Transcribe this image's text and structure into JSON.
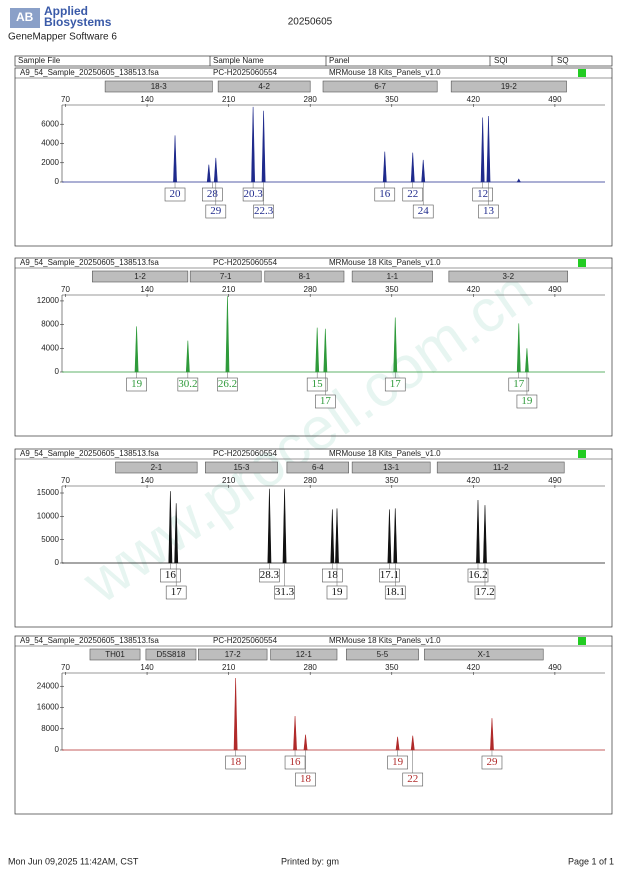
{
  "header": {
    "logo_line1": "Applied",
    "logo_line2": "Biosystems",
    "software": "GeneMapper Software 6",
    "date": "20250605"
  },
  "columns": [
    "Sample File",
    "Sample Name",
    "Panel",
    "SQI",
    "SQ"
  ],
  "watermark": "www.procell.com.cn",
  "footer": {
    "printed_on": "Mon Jun 09,2025 11:42AM, CST",
    "printed_by": "Printed by: gm",
    "page": "Page 1 of 1"
  },
  "chart_data": [
    {
      "type": "peak",
      "color": "#1f2a8c",
      "sample_file": "A9_54_Sample_20250605_138513.fsa",
      "sample_name": "PC-H2025060554",
      "panel": "MRMouse 18 Kits_Panels_v1.0",
      "markers": [
        "18-3",
        "4-2",
        "6-7",
        "19-2"
      ],
      "marker_ranges": [
        [
          104,
          196
        ],
        [
          201,
          280
        ],
        [
          291,
          389
        ],
        [
          401,
          500
        ]
      ],
      "xlim": [
        67,
        533
      ],
      "xticks": [
        70,
        140,
        210,
        280,
        350,
        420,
        490
      ],
      "ylim": [
        0,
        8000
      ],
      "yticks": [
        0,
        2000,
        4000,
        6000
      ],
      "x": [
        164,
        193,
        199,
        231,
        240,
        344,
        368,
        377,
        428,
        433,
        459
      ],
      "values": [
        4840,
        1800,
        2500,
        7800,
        7400,
        3150,
        3050,
        2300,
        6700,
        6850,
        300
      ],
      "alleles": [
        "20",
        "28",
        "29",
        "20.3",
        "22.3",
        "16",
        "22",
        "24",
        "12",
        "13"
      ],
      "allele_x": [
        164,
        196,
        199,
        231,
        240,
        344,
        368,
        377,
        428,
        433
      ]
    },
    {
      "type": "peak",
      "color": "#2e9a3a",
      "sample_file": "A9_54_Sample_20250605_138513.fsa",
      "sample_name": "PC-H2025060554",
      "panel": "MRMouse 18 Kits_Panels_v1.0",
      "markers": [
        "1-2",
        "7-1",
        "8-1",
        "1-1",
        "3-2"
      ],
      "marker_ranges": [
        [
          93,
          175
        ],
        [
          177,
          238
        ],
        [
          241,
          309
        ],
        [
          316,
          385
        ],
        [
          399,
          501
        ]
      ],
      "xlim": [
        67,
        533
      ],
      "xticks": [
        70,
        140,
        210,
        280,
        350,
        420,
        490
      ],
      "ylim": [
        0,
        13000
      ],
      "yticks": [
        0,
        4000,
        8000,
        12000
      ],
      "x": [
        131,
        175,
        209,
        286,
        293,
        353,
        459,
        466
      ],
      "values": [
        7700,
        5300,
        12800,
        7500,
        7300,
        9200,
        8200,
        4000
      ],
      "alleles": [
        "19",
        "30.2",
        "26.2",
        "15",
        "17",
        "17",
        "17",
        "19"
      ],
      "allele_x": [
        131,
        175,
        209,
        286,
        293,
        353,
        459,
        466
      ]
    },
    {
      "type": "peak",
      "color": "#111111",
      "sample_file": "A9_54_Sample_20250605_138513.fsa",
      "sample_name": "PC-H2025060554",
      "panel": "MRMouse 18 Kits_Panels_v1.0",
      "markers": [
        "2-1",
        "15-3",
        "6-4",
        "13-1",
        "11-2"
      ],
      "marker_ranges": [
        [
          113,
          183
        ],
        [
          190,
          252
        ],
        [
          260,
          313
        ],
        [
          316,
          383
        ],
        [
          389,
          498
        ]
      ],
      "xlim": [
        67,
        533
      ],
      "xticks": [
        70,
        140,
        210,
        280,
        350,
        420,
        490
      ],
      "ylim": [
        0,
        16500
      ],
      "yticks": [
        0,
        5000,
        10000,
        15000
      ],
      "x": [
        160,
        165,
        245,
        258,
        299,
        303,
        348,
        353,
        424,
        430
      ],
      "values": [
        15400,
        12800,
        15900,
        15900,
        11500,
        11700,
        11500,
        11700,
        13500,
        12400
      ],
      "alleles": [
        "16",
        "17",
        "28.3",
        "31.3",
        "18",
        "19",
        "17.1",
        "18.1",
        "16.2",
        "17.2"
      ],
      "allele_x": [
        160,
        165,
        245,
        258,
        299,
        303,
        348,
        353,
        424,
        430
      ]
    },
    {
      "type": "peak",
      "color": "#b02a2a",
      "sample_file": "A9_54_Sample_20250605_138513.fsa",
      "sample_name": "PC-H2025060554",
      "panel": "MRMouse 18 Kits_Panels_v1.0",
      "markers": [
        "TH01",
        "D5S818",
        "17-2",
        "12-1",
        "5-5",
        "X-1"
      ],
      "marker_ranges": [
        [
          91,
          134
        ],
        [
          139,
          182
        ],
        [
          184,
          243
        ],
        [
          246,
          303
        ],
        [
          311,
          373
        ],
        [
          378,
          480
        ]
      ],
      "xlim": [
        67,
        533
      ],
      "xticks": [
        70,
        140,
        210,
        280,
        350,
        420,
        490
      ],
      "ylim": [
        0,
        29000
      ],
      "yticks": [
        0,
        8000,
        16000,
        24000
      ],
      "x": [
        216,
        267,
        276,
        355,
        368,
        436
      ],
      "values": [
        27100,
        12800,
        5800,
        5000,
        5400,
        12000
      ],
      "alleles": [
        "18",
        "16",
        "18",
        "19",
        "22",
        "29"
      ],
      "allele_x": [
        216,
        267,
        276,
        355,
        368,
        436
      ]
    }
  ]
}
